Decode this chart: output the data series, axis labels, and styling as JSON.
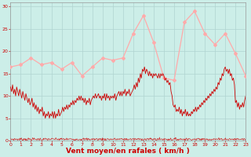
{
  "xlabel": "Vent moyen/en rafales ( km/h )",
  "xlabel_color": "#cc0000",
  "background_color": "#cceee8",
  "grid_color": "#b0d4d0",
  "ylim": [
    0,
    31
  ],
  "xlim": [
    0,
    23
  ],
  "yticks": [
    0,
    5,
    10,
    15,
    20,
    25,
    30
  ],
  "xticks": [
    0,
    1,
    2,
    3,
    4,
    5,
    6,
    7,
    8,
    9,
    10,
    11,
    12,
    13,
    14,
    15,
    16,
    17,
    18,
    19,
    20,
    21,
    22,
    23
  ],
  "wind_gust": [
    16.5,
    17.0,
    18.5,
    17.0,
    17.5,
    16.0,
    17.5,
    14.5,
    16.5,
    18.5,
    18.0,
    18.5,
    24.0,
    28.0,
    22.0,
    14.0,
    13.5,
    26.5,
    29.0,
    24.0,
    21.5,
    24.0,
    19.5,
    14.5
  ],
  "wind_gust_color": "#ffaaaa",
  "wind_mean_color": "#cc0000",
  "mean_x": [
    0.0,
    0.1,
    0.2,
    0.3,
    0.4,
    0.5,
    0.6,
    0.7,
    0.8,
    0.9,
    1.0,
    1.1,
    1.2,
    1.3,
    1.4,
    1.5,
    1.6,
    1.7,
    1.8,
    1.9,
    2.0,
    2.1,
    2.2,
    2.3,
    2.4,
    2.5,
    2.6,
    2.7,
    2.8,
    2.9,
    3.0,
    3.1,
    3.2,
    3.3,
    3.4,
    3.5,
    3.6,
    3.7,
    3.8,
    3.9,
    4.0,
    4.1,
    4.2,
    4.3,
    4.4,
    4.5,
    4.6,
    4.7,
    4.8,
    4.9,
    5.0,
    5.1,
    5.2,
    5.3,
    5.4,
    5.5,
    5.6,
    5.7,
    5.8,
    5.9,
    6.0,
    6.1,
    6.2,
    6.3,
    6.4,
    6.5,
    6.6,
    6.7,
    6.8,
    6.9,
    7.0,
    7.1,
    7.2,
    7.3,
    7.4,
    7.5,
    7.6,
    7.7,
    7.8,
    7.9,
    8.0,
    8.1,
    8.2,
    8.3,
    8.4,
    8.5,
    8.6,
    8.7,
    8.8,
    8.9,
    9.0,
    9.1,
    9.2,
    9.3,
    9.4,
    9.5,
    9.6,
    9.7,
    9.8,
    9.9,
    10.0,
    10.1,
    10.2,
    10.3,
    10.4,
    10.5,
    10.6,
    10.7,
    10.8,
    10.9,
    11.0,
    11.1,
    11.2,
    11.3,
    11.4,
    11.5,
    11.6,
    11.7,
    11.8,
    11.9,
    12.0,
    12.1,
    12.2,
    12.3,
    12.4,
    12.5,
    12.6,
    12.7,
    12.8,
    12.9,
    13.0,
    13.1,
    13.2,
    13.3,
    13.4,
    13.5,
    13.6,
    13.7,
    13.8,
    13.9,
    14.0,
    14.1,
    14.2,
    14.3,
    14.4,
    14.5,
    14.6,
    14.7,
    14.8,
    14.9,
    15.0,
    15.1,
    15.2,
    15.3,
    15.4,
    15.5,
    15.6,
    15.7,
    15.8,
    15.9,
    16.0,
    16.1,
    16.2,
    16.3,
    16.4,
    16.5,
    16.6,
    16.7,
    16.8,
    16.9,
    17.0,
    17.1,
    17.2,
    17.3,
    17.4,
    17.5,
    17.6,
    17.7,
    17.8,
    17.9,
    18.0,
    18.1,
    18.2,
    18.3,
    18.4,
    18.5,
    18.6,
    18.7,
    18.8,
    18.9,
    19.0,
    19.1,
    19.2,
    19.3,
    19.4,
    19.5,
    19.6,
    19.7,
    19.8,
    19.9,
    20.0,
    20.1,
    20.2,
    20.3,
    20.4,
    20.5,
    20.6,
    20.7,
    20.8,
    20.9,
    21.0,
    21.1,
    21.2,
    21.3,
    21.4,
    21.5,
    21.6,
    21.7,
    21.8,
    21.9,
    22.0,
    22.1,
    22.2,
    22.3,
    22.4,
    22.5,
    22.6,
    22.7,
    22.8,
    22.9,
    23.0
  ],
  "mean_y": [
    12.0,
    11.0,
    12.5,
    10.5,
    11.5,
    10.0,
    12.0,
    11.0,
    10.0,
    11.5,
    10.5,
    9.5,
    11.0,
    10.0,
    9.0,
    10.5,
    9.5,
    8.5,
    9.5,
    8.0,
    8.5,
    9.5,
    7.5,
    8.5,
    7.0,
    8.0,
    6.5,
    7.5,
    6.0,
    7.0,
    6.5,
    7.5,
    5.5,
    6.5,
    5.0,
    6.0,
    5.5,
    6.5,
    5.0,
    6.0,
    5.5,
    6.5,
    5.0,
    6.5,
    5.0,
    6.0,
    5.5,
    7.0,
    5.5,
    6.0,
    6.5,
    7.5,
    6.5,
    7.5,
    7.0,
    8.0,
    7.0,
    8.0,
    7.5,
    8.5,
    8.0,
    9.0,
    8.0,
    9.0,
    8.5,
    9.5,
    9.0,
    10.0,
    9.0,
    10.0,
    9.0,
    9.5,
    8.5,
    9.5,
    8.0,
    9.0,
    8.5,
    9.5,
    8.0,
    9.0,
    9.5,
    10.0,
    9.5,
    10.5,
    9.5,
    10.0,
    10.5,
    9.5,
    10.0,
    9.0,
    10.0,
    9.5,
    10.5,
    9.0,
    10.5,
    9.5,
    10.0,
    9.0,
    10.0,
    9.5,
    10.0,
    9.5,
    10.5,
    9.0,
    10.0,
    10.5,
    11.0,
    10.0,
    11.0,
    10.0,
    11.0,
    10.5,
    11.5,
    10.0,
    11.0,
    10.5,
    11.5,
    10.0,
    10.5,
    11.0,
    11.5,
    12.5,
    11.5,
    13.0,
    12.0,
    14.0,
    13.0,
    15.0,
    14.0,
    16.0,
    15.5,
    16.5,
    15.0,
    16.0,
    15.5,
    14.5,
    15.5,
    14.5,
    15.0,
    14.0,
    15.0,
    14.5,
    15.0,
    14.5,
    14.0,
    15.0,
    14.0,
    15.0,
    14.5,
    15.0,
    14.5,
    13.5,
    14.0,
    13.0,
    13.5,
    12.5,
    13.0,
    11.0,
    10.0,
    8.0,
    7.5,
    8.0,
    6.5,
    7.0,
    6.5,
    7.5,
    6.0,
    7.0,
    5.5,
    6.5,
    6.0,
    7.0,
    5.5,
    6.5,
    5.5,
    6.0,
    5.5,
    6.5,
    6.0,
    7.0,
    6.5,
    7.5,
    6.5,
    7.5,
    7.0,
    8.0,
    7.5,
    8.5,
    8.0,
    9.0,
    8.5,
    9.5,
    9.0,
    10.0,
    9.5,
    10.5,
    10.0,
    11.0,
    10.5,
    11.5,
    11.0,
    12.0,
    11.5,
    13.0,
    12.5,
    14.0,
    13.5,
    15.0,
    14.5,
    16.0,
    16.5,
    15.5,
    16.0,
    15.0,
    16.0,
    14.5,
    15.0,
    13.5,
    14.0,
    12.5,
    8.5,
    9.0,
    7.5,
    8.5,
    7.0,
    8.0,
    7.5,
    8.5,
    7.5,
    9.0,
    10.0
  ]
}
